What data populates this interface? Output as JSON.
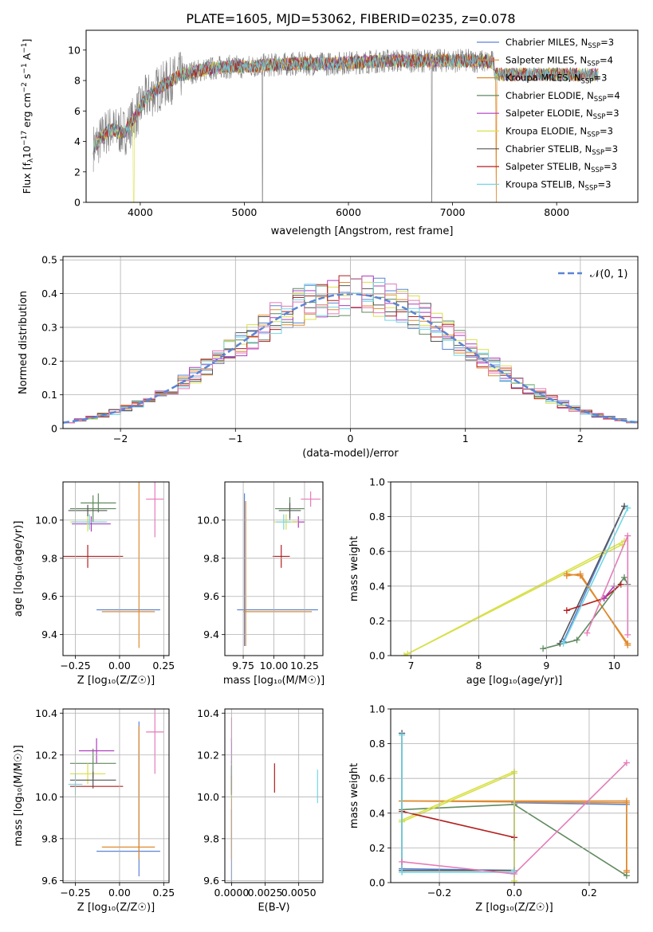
{
  "figure_title": "PLATE=1605, MJD=53062, FIBERID=0235, z=0.078",
  "colors": {
    "C1": "#5b84d6",
    "C2": "#e08a2e",
    "C3": "#5f8a5f",
    "C4": "#b03cc0",
    "C5": "#d8e04a",
    "C6": "#555555",
    "C7": "#b41f1f",
    "C8": "#72d6e6",
    "C9": "#e67bb8",
    "data": "#808080",
    "grid": "#b0b0b0"
  },
  "chart_data": [
    {
      "type": "line",
      "id": "spectrum",
      "xlabel": "wavelength [Angstrom, rest frame]",
      "ylabel_parts": [
        "Flux [f",
        "λ",
        "10",
        "−17",
        " erg cm",
        "−2",
        " s",
        "−1",
        " A",
        "−1",
        "]"
      ],
      "xlim": [
        3480,
        8780
      ],
      "ylim": [
        0,
        11.3
      ],
      "xticks": [
        4000,
        5000,
        6000,
        7000,
        8000
      ],
      "yticks": [
        0,
        2,
        4,
        6,
        8,
        10
      ],
      "grid": false,
      "legend_position": "right",
      "spectrum_knots": {
        "x": [
          3550,
          3700,
          3850,
          3950,
          4050,
          4200,
          4400,
          4600,
          4800,
          5000,
          5200,
          5500,
          5800,
          6100,
          6400,
          6700,
          7000,
          7200,
          7400
        ],
        "y": [
          3.6,
          4.8,
          4.6,
          5.6,
          6.8,
          7.6,
          8.4,
          8.7,
          8.9,
          8.9,
          9.0,
          9.1,
          9.1,
          9.2,
          9.3,
          9.3,
          9.3,
          9.3,
          9.2
        ]
      },
      "model_x_end": 8400,
      "model_tail_y": 8.4,
      "series": [
        {
          "name": "Chabrier MILES, N",
          "sub": "SSP",
          "suffix": "=3",
          "color": "C1"
        },
        {
          "name": "Salpeter MILES, N",
          "sub": "SSP",
          "suffix": "=4",
          "color": "C2"
        },
        {
          "name": "Kroupa MILES, N",
          "sub": "SSP",
          "suffix": "=3",
          "color": "C2"
        },
        {
          "name": "Chabrier ELODIE, N",
          "sub": "SSP",
          "suffix": "=4",
          "color": "C3"
        },
        {
          "name": "Salpeter ELODIE, N",
          "sub": "SSP",
          "suffix": "=3",
          "color": "C4"
        },
        {
          "name": "Kroupa ELODIE, N",
          "sub": "SSP",
          "suffix": "=3",
          "color": "C5"
        },
        {
          "name": "Chabrier STELIB, N",
          "sub": "SSP",
          "suffix": "=3",
          "color": "C6"
        },
        {
          "name": "Salpeter STELIB, N",
          "sub": "SSP",
          "suffix": "=3",
          "color": "C7"
        },
        {
          "name": "Kroupa STELIB, N",
          "sub": "SSP",
          "suffix": "=3",
          "color": "C8"
        }
      ]
    },
    {
      "type": "histogram",
      "id": "residuals",
      "xlabel": "(data-model)/error",
      "ylabel": "Normed distribution",
      "xlim": [
        -2.5,
        2.5
      ],
      "ylim": [
        0,
        0.51
      ],
      "xticks": [
        -2,
        -1,
        0,
        1,
        2
      ],
      "xticklabels": [
        "−2",
        "−1",
        "0",
        "1",
        "2"
      ],
      "yticks": [
        0.0,
        0.1,
        0.2,
        0.3,
        0.4,
        0.5
      ],
      "grid": true,
      "legend": "𝒩(0, 1)",
      "legend_position": "top-right",
      "bin_width": 0.1,
      "histogram_colors": [
        "C1",
        "C2",
        "C3",
        "C4",
        "C5",
        "C6",
        "C7",
        "C8",
        "C9"
      ],
      "gaussian": {
        "mean": 0,
        "sigma": 1
      }
    },
    {
      "type": "scatter",
      "id": "age-vs-Z",
      "xlabel": "Z [log₁₀(Z/Z☉)]",
      "ylabel": "age  [log₁₀(age/yr)]",
      "xlim": [
        -0.32,
        0.28
      ],
      "ylim": [
        9.29,
        10.2
      ],
      "xticks": [
        -0.25,
        0.0,
        0.25
      ],
      "xticklabels": [
        "−0.25",
        "0.00",
        "0.25"
      ],
      "yticks": [
        9.4,
        9.6,
        9.8,
        10.0
      ],
      "yticklabels": [
        "9.4",
        "9.6",
        "9.8",
        "10.0"
      ],
      "grid": true,
      "points": [
        {
          "x": 0.05,
          "y": 9.53,
          "xerr": 0.18,
          "yerr": 0.0,
          "color": "C1"
        },
        {
          "x": 0.05,
          "y": 9.52,
          "xerr": 0.15,
          "yerr": 0.0,
          "color": "C2"
        },
        {
          "x": 0.11,
          "y": 9.93,
          "xerr": 0.0,
          "yerr": 0.6,
          "color": "C2"
        },
        {
          "x": -0.15,
          "y": 10.06,
          "xerr": 0.13,
          "yerr": 0.07,
          "color": "C3"
        },
        {
          "x": -0.12,
          "y": 10.09,
          "xerr": 0.1,
          "yerr": 0.05,
          "color": "C3"
        },
        {
          "x": -0.16,
          "y": 9.98,
          "xerr": 0.11,
          "yerr": 0.04,
          "color": "C4"
        },
        {
          "x": -0.18,
          "y": 9.99,
          "xerr": 0.1,
          "yerr": 0.05,
          "color": "C5"
        },
        {
          "x": -0.18,
          "y": 10.05,
          "xerr": 0.11,
          "yerr": 0.03,
          "color": "C6"
        },
        {
          "x": -0.18,
          "y": 9.81,
          "xerr": 0.2,
          "yerr": 0.06,
          "color": "C7"
        },
        {
          "x": -0.17,
          "y": 9.99,
          "xerr": 0.1,
          "yerr": 0.04,
          "color": "C8"
        },
        {
          "x": 0.2,
          "y": 10.11,
          "xerr": 0.05,
          "yerr": 0.2,
          "color": "C9"
        }
      ]
    },
    {
      "type": "scatter",
      "id": "age-vs-mass",
      "xlabel": "mass [log₁₀(M/M☉)]",
      "ylabel": "",
      "xlim": [
        9.6,
        10.4
      ],
      "ylim": [
        9.29,
        10.2
      ],
      "xticks": [
        9.75,
        10.0,
        10.25
      ],
      "xticklabels": [
        "9.75",
        "10.00",
        "10.25"
      ],
      "yticks": [
        9.4,
        9.6,
        9.8,
        10.0
      ],
      "yticklabels": [
        "9.4",
        "9.6",
        "9.8",
        "10.0"
      ],
      "grid": true,
      "points": [
        {
          "x": 10.03,
          "y": 9.53,
          "xerr": 0.33,
          "yerr": 0.0,
          "color": "C1"
        },
        {
          "x": 9.76,
          "y": 9.74,
          "xerr": 0.0,
          "yerr": 0.4,
          "color": "C1"
        },
        {
          "x": 10.03,
          "y": 9.52,
          "xerr": 0.28,
          "yerr": 0.0,
          "color": "C2"
        },
        {
          "x": 9.77,
          "y": 9.72,
          "xerr": 0.0,
          "yerr": 0.38,
          "color": "C2"
        },
        {
          "x": 10.13,
          "y": 10.06,
          "xerr": 0.12,
          "yerr": 0.06,
          "color": "C3"
        },
        {
          "x": 10.2,
          "y": 9.99,
          "xerr": 0.05,
          "yerr": 0.03,
          "color": "C4"
        },
        {
          "x": 10.1,
          "y": 9.99,
          "xerr": 0.1,
          "yerr": 0.04,
          "color": "C5"
        },
        {
          "x": 10.13,
          "y": 10.05,
          "xerr": 0.09,
          "yerr": 0.04,
          "color": "C6"
        },
        {
          "x": 10.06,
          "y": 9.81,
          "xerr": 0.07,
          "yerr": 0.06,
          "color": "C7"
        },
        {
          "x": 10.08,
          "y": 9.99,
          "xerr": 0.06,
          "yerr": 0.04,
          "color": "C8"
        },
        {
          "x": 10.3,
          "y": 10.11,
          "xerr": 0.08,
          "yerr": 0.04,
          "color": "C9"
        }
      ]
    },
    {
      "type": "line",
      "id": "mass-weight-vs-age",
      "xlabel": "age  [log₁₀(age/yr)]",
      "ylabel": "mass weight",
      "xlim": [
        6.7,
        10.35
      ],
      "ylim": [
        0,
        1.0
      ],
      "xticks": [
        7,
        8,
        9,
        10
      ],
      "xticklabels": [
        "7",
        "8",
        "9",
        "10"
      ],
      "yticks": [
        0.0,
        0.2,
        0.4,
        0.6,
        0.8,
        1.0
      ],
      "yticklabels": [
        "0.0",
        "0.2",
        "0.4",
        "0.6",
        "0.8",
        "1.0"
      ],
      "grid": true,
      "series": [
        {
          "color": "C1",
          "x": [
            9.25,
            10.15
          ],
          "y": [
            0.08,
            0.86
          ]
        },
        {
          "color": "C5",
          "x": [
            6.9,
            10.12
          ],
          "y": [
            0.0,
            0.64
          ]
        },
        {
          "color": "C5",
          "x": [
            6.95,
            10.15
          ],
          "y": [
            0.01,
            0.66
          ]
        },
        {
          "color": "C2",
          "x": [
            9.3,
            9.5,
            10.2
          ],
          "y": [
            0.46,
            0.47,
            0.06
          ]
        },
        {
          "color": "C2",
          "x": [
            9.3,
            9.5,
            10.2
          ],
          "y": [
            0.47,
            0.46,
            0.07
          ]
        },
        {
          "color": "C3",
          "x": [
            8.95,
            9.45,
            10.15,
            10.2
          ],
          "y": [
            0.04,
            0.09,
            0.45,
            0.41
          ]
        },
        {
          "color": "C6",
          "x": [
            9.2,
            10.15
          ],
          "y": [
            0.07,
            0.86
          ]
        },
        {
          "color": "C7",
          "x": [
            9.3,
            9.85,
            10.1
          ],
          "y": [
            0.26,
            0.33,
            0.41
          ]
        },
        {
          "color": "C4",
          "x": [
            9.85,
            10.0
          ],
          "y": [
            0.33,
            0.4
          ]
        },
        {
          "color": "C8",
          "x": [
            9.25,
            10.2
          ],
          "y": [
            0.07,
            0.85
          ]
        },
        {
          "color": "C9",
          "x": [
            9.6,
            10.2,
            10.2
          ],
          "y": [
            0.13,
            0.69,
            0.12
          ]
        }
      ]
    },
    {
      "type": "scatter",
      "id": "mass-vs-Z",
      "xlabel": "Z [log₁₀(Z/Z☉)]",
      "ylabel": "mass [log₁₀(M/M☉)]",
      "xlim": [
        -0.32,
        0.28
      ],
      "ylim": [
        9.59,
        10.42
      ],
      "xticks": [
        -0.25,
        0.0,
        0.25
      ],
      "xticklabels": [
        "−0.25",
        "0.00",
        "0.25"
      ],
      "yticks": [
        9.6,
        9.8,
        10.0,
        10.2,
        10.4
      ],
      "yticklabels": [
        "9.6",
        "9.8",
        "10.0",
        "10.2",
        "10.4"
      ],
      "grid": true,
      "points": [
        {
          "x": 0.05,
          "y": 9.74,
          "xerr": 0.18,
          "yerr": 0.0,
          "color": "C1"
        },
        {
          "x": 0.11,
          "y": 9.99,
          "xerr": 0.0,
          "yerr": 0.37,
          "color": "C1"
        },
        {
          "x": 0.05,
          "y": 9.76,
          "xerr": 0.15,
          "yerr": 0.0,
          "color": "C2"
        },
        {
          "x": 0.11,
          "y": 10.02,
          "xerr": 0.0,
          "yerr": 0.32,
          "color": "C2"
        },
        {
          "x": -0.15,
          "y": 10.16,
          "xerr": 0.13,
          "yerr": 0.07,
          "color": "C3"
        },
        {
          "x": -0.13,
          "y": 10.22,
          "xerr": 0.1,
          "yerr": 0.06,
          "color": "C4"
        },
        {
          "x": -0.18,
          "y": 10.11,
          "xerr": 0.1,
          "yerr": 0.05,
          "color": "C5"
        },
        {
          "x": -0.15,
          "y": 10.08,
          "xerr": 0.13,
          "yerr": 0.04,
          "color": "C6"
        },
        {
          "x": -0.13,
          "y": 10.05,
          "xerr": 0.15,
          "yerr": 0.0,
          "color": "C7"
        },
        {
          "x": -0.25,
          "y": 10.06,
          "xerr": 0.04,
          "yerr": 0.05,
          "color": "C8"
        },
        {
          "x": 0.2,
          "y": 10.31,
          "xerr": 0.05,
          "yerr": 0.2,
          "color": "C9"
        }
      ]
    },
    {
      "type": "scatter",
      "id": "mass-vs-ebv",
      "xlabel": "E(B-V)",
      "ylabel": "",
      "xlim": [
        -0.0005,
        0.0068
      ],
      "ylim": [
        9.59,
        10.42
      ],
      "xticks": [
        0.0,
        0.0025,
        0.005
      ],
      "xticklabels": [
        "0.0000",
        "0.0025",
        "0.0050"
      ],
      "yticks": [
        9.6,
        9.8,
        10.0,
        10.2,
        10.4
      ],
      "yticklabels": [
        "9.6",
        "9.8",
        "10.0",
        "10.2",
        "10.4"
      ],
      "grid": true,
      "points": [
        {
          "x": 0.0,
          "y": 9.74,
          "xerr": 0.0,
          "yerr": 0.2,
          "color": "C1"
        },
        {
          "x": 0.0,
          "y": 9.9,
          "xerr": 0.0,
          "yerr": 0.2,
          "color": "C2"
        },
        {
          "x": 0.0,
          "y": 10.1,
          "xerr": 0.0,
          "yerr": 0.07,
          "color": "C3"
        },
        {
          "x": 0.0,
          "y": 10.22,
          "xerr": 0.0,
          "yerr": 0.06,
          "color": "C4"
        },
        {
          "x": 0.0,
          "y": 10.04,
          "xerr": 0.0,
          "yerr": 0.05,
          "color": "C5"
        },
        {
          "x": 0.0,
          "y": 10.08,
          "xerr": 0.0,
          "yerr": 0.07,
          "color": "C6"
        },
        {
          "x": 0.0032,
          "y": 10.09,
          "xerr": 0.0,
          "yerr": 0.07,
          "color": "C7"
        },
        {
          "x": 0.0064,
          "y": 10.05,
          "xerr": 0.0,
          "yerr": 0.08,
          "color": "C8"
        },
        {
          "x": 0.0,
          "y": 10.32,
          "xerr": 0.0,
          "yerr": 0.06,
          "color": "C9"
        }
      ]
    },
    {
      "type": "line",
      "id": "mass-weight-vs-Z",
      "xlabel": "Z [log₁₀(Z/Z☉)]",
      "ylabel": "mass weight",
      "xlim": [
        -0.33,
        0.33
      ],
      "ylim": [
        0,
        1.0
      ],
      "xticks": [
        -0.2,
        0.0,
        0.2
      ],
      "xticklabels": [
        "−0.2",
        "0.0",
        "0.2"
      ],
      "yticks": [
        0.0,
        0.2,
        0.4,
        0.6,
        0.8,
        1.0
      ],
      "yticklabels": [
        "0.0",
        "0.2",
        "0.4",
        "0.6",
        "0.8",
        "1.0"
      ],
      "grid": true,
      "series": [
        {
          "color": "C1",
          "x": [
            -0.3,
            -0.3,
            0.0,
            0.0,
            0.3
          ],
          "y": [
            0.86,
            0.08,
            0.07,
            0.46,
            0.45
          ]
        },
        {
          "color": "C2",
          "x": [
            -0.3,
            0.3,
            0.3
          ],
          "y": [
            0.47,
            0.46,
            0.06
          ]
        },
        {
          "color": "C2",
          "x": [
            -0.3,
            0.3,
            0.3
          ],
          "y": [
            0.47,
            0.47,
            0.07
          ]
        },
        {
          "color": "C3",
          "x": [
            -0.3,
            0.0,
            0.3
          ],
          "y": [
            0.42,
            0.45,
            0.04
          ]
        },
        {
          "color": "C5",
          "x": [
            -0.3,
            0.0,
            0.0
          ],
          "y": [
            0.36,
            0.64,
            0.0
          ]
        },
        {
          "color": "C5",
          "x": [
            -0.3,
            0.0,
            0.0
          ],
          "y": [
            0.35,
            0.63,
            0.01
          ]
        },
        {
          "color": "C6",
          "x": [
            -0.3,
            -0.3,
            0.0
          ],
          "y": [
            0.86,
            0.07,
            0.07
          ]
        },
        {
          "color": "C7",
          "x": [
            -0.3,
            0.0
          ],
          "y": [
            0.41,
            0.26
          ]
        },
        {
          "color": "C8",
          "x": [
            -0.3,
            -0.3,
            0.0,
            0.0
          ],
          "y": [
            0.85,
            0.06,
            0.06,
            0.07
          ]
        },
        {
          "color": "C9",
          "x": [
            -0.3,
            0.0,
            0.3
          ],
          "y": [
            0.12,
            0.05,
            0.69
          ]
        }
      ]
    }
  ]
}
